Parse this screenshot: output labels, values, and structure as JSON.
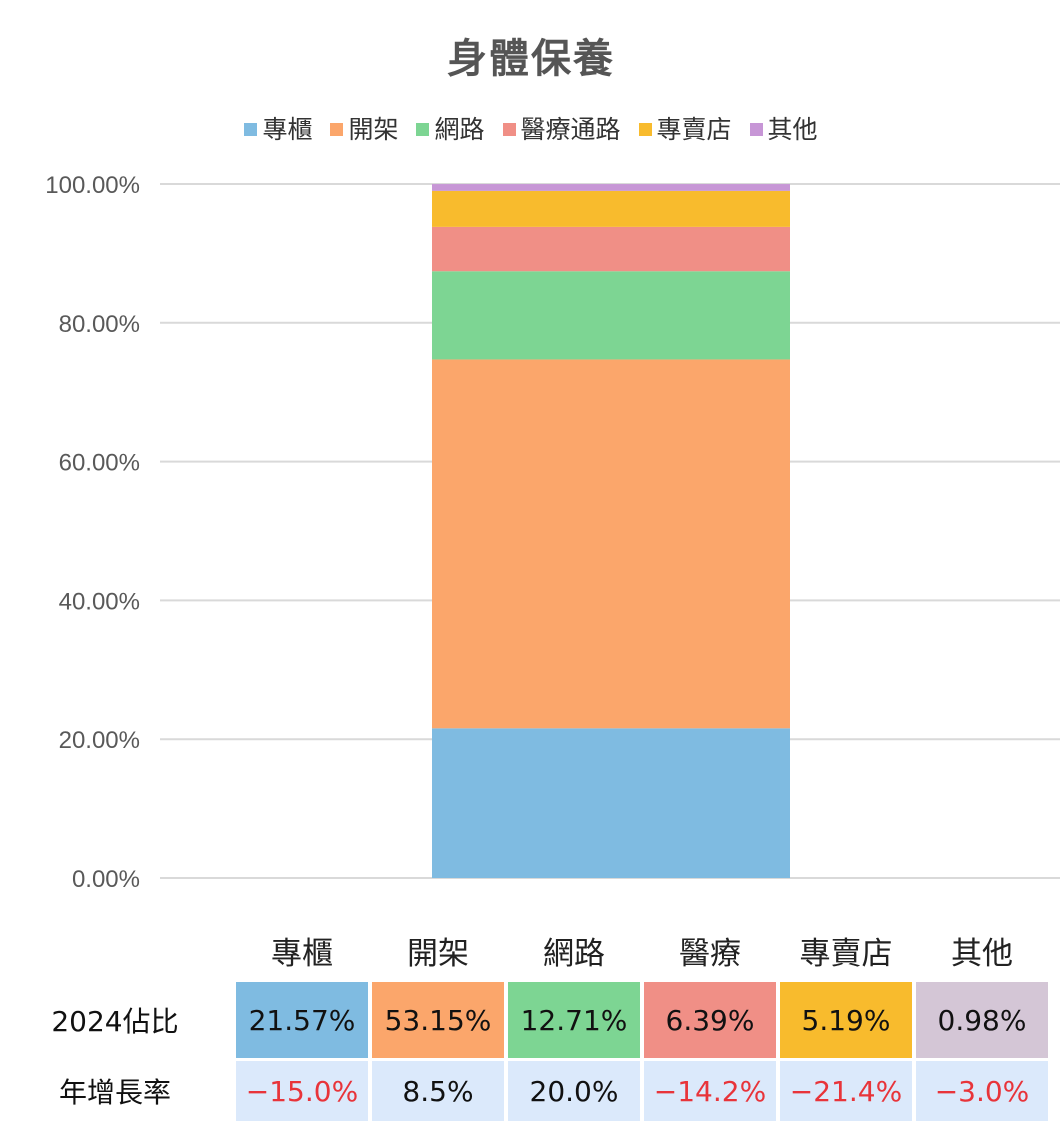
{
  "chart_data": {
    "type": "bar",
    "stacked": true,
    "title": "身體保養",
    "categories": [
      ""
    ],
    "series": [
      {
        "name": "專櫃",
        "values": [
          21.57
        ],
        "color": "#7fbbe1"
      },
      {
        "name": "開架",
        "values": [
          53.15
        ],
        "color": "#fba66b"
      },
      {
        "name": "網路",
        "values": [
          12.71
        ],
        "color": "#7dd593"
      },
      {
        "name": "醫療通路",
        "values": [
          6.39
        ],
        "color": "#f08f86"
      },
      {
        "name": "專賣店",
        "values": [
          5.19
        ],
        "color": "#f8bb2d"
      },
      {
        "name": "其他",
        "values": [
          0.98
        ],
        "color": "#c796d6"
      }
    ],
    "ylim": [
      0,
      100
    ],
    "yticks": [
      "0.00%",
      "20.00%",
      "40.00%",
      "60.00%",
      "80.00%",
      "100.00%"
    ],
    "ytick_values": [
      0,
      20,
      40,
      60,
      80,
      100
    ],
    "grid": true,
    "legend_position": "top"
  },
  "table": {
    "columns": [
      "專櫃",
      "開架",
      "網路",
      "醫療",
      "專賣店",
      "其他"
    ],
    "share_label": "2024佔比",
    "share_values": [
      "21.57%",
      "53.15%",
      "12.71%",
      "6.39%",
      "5.19%",
      "0.98%"
    ],
    "share_colors": [
      "#7fbbe1",
      "#fba66b",
      "#7dd593",
      "#f08f86",
      "#f8bb2d",
      "#d4c6d6"
    ],
    "growth_label": "年增長率",
    "growth_values": [
      "−15.0%",
      "8.5%",
      "20.0%",
      "−14.2%",
      "−21.4%",
      "−3.0%"
    ],
    "growth_negative": [
      true,
      false,
      false,
      true,
      true,
      true
    ]
  }
}
